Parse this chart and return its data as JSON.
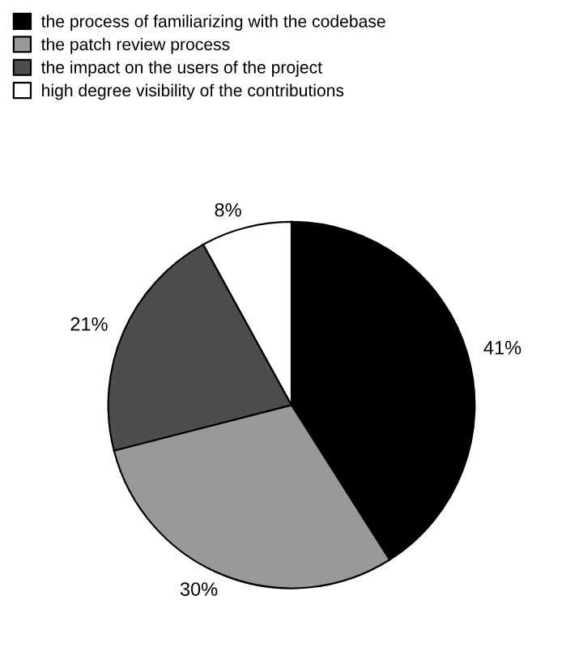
{
  "chart_data": {
    "type": "pie",
    "categories": [
      "the process of familiarizing with the codebase",
      "the patch review process",
      "the impact on the users of the project",
      "high degree visibility of the contributions"
    ],
    "values": [
      41,
      30,
      21,
      8
    ],
    "value_labels": [
      "41%",
      "30%",
      "21%",
      "8%"
    ],
    "colors": [
      "#000000",
      "#999999",
      "#4d4d4d",
      "#ffffff"
    ],
    "legend": "top left"
  }
}
